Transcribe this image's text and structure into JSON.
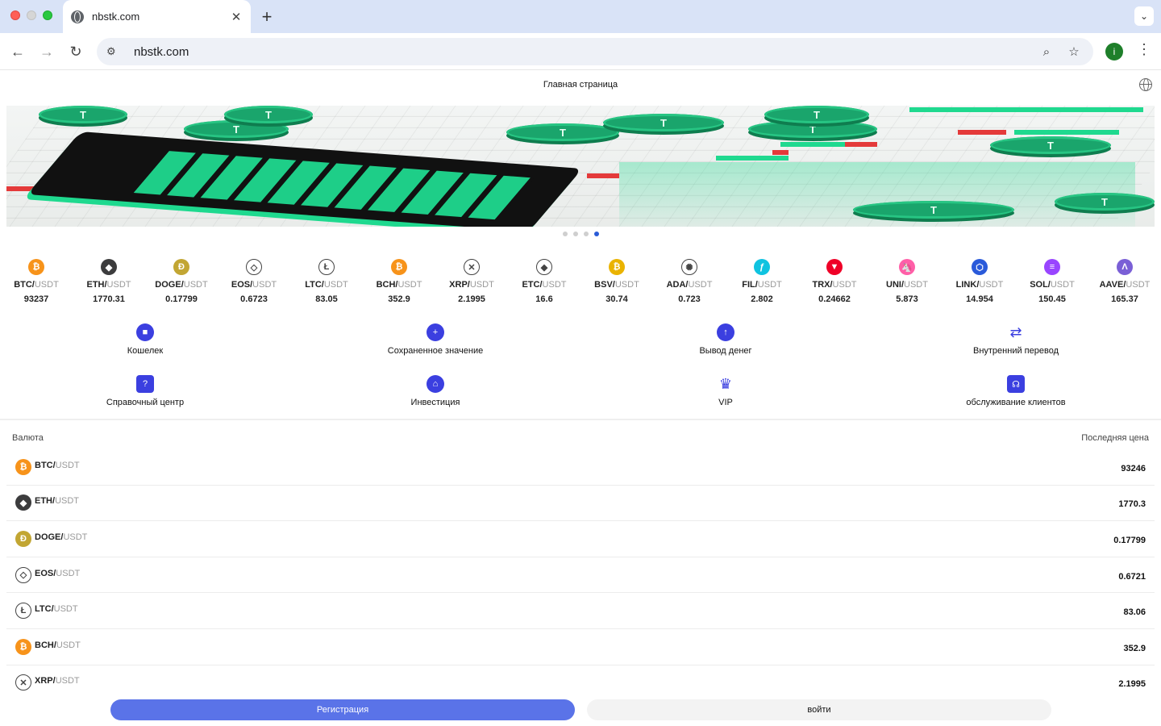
{
  "browser": {
    "tab_title": "nbstk.com",
    "tab_close": "✕",
    "new_tab": "+",
    "tab_menu": "⌄",
    "url": "nbstk.com",
    "profile_initial": "i"
  },
  "header": {
    "title": "Главная страница"
  },
  "carousel": {
    "slides": 4,
    "active_slide": 4
  },
  "ticker": [
    {
      "base": "BTC/",
      "quote": "USDT",
      "price": "93237",
      "icon": "bitcoin-icon",
      "color": "#f7931a",
      "glyph": "₿"
    },
    {
      "base": "ETH/",
      "quote": "USDT",
      "price": "1770.31",
      "icon": "ethereum-icon",
      "color": "#3c3c3d",
      "glyph": "◆"
    },
    {
      "base": "DOGE/",
      "quote": "USDT",
      "price": "0.17799",
      "icon": "dogecoin-icon",
      "color": "#c2a633",
      "glyph": "Ð"
    },
    {
      "base": "EOS/",
      "quote": "USDT",
      "price": "0.6723",
      "icon": "eos-icon",
      "color": "#ffffff",
      "glyph": "◇"
    },
    {
      "base": "LTC/",
      "quote": "USDT",
      "price": "83.05",
      "icon": "litecoin-icon",
      "color": "#ffffff",
      "glyph": "Ł"
    },
    {
      "base": "BCH/",
      "quote": "USDT",
      "price": "352.9",
      "icon": "bitcoin-cash-icon",
      "color": "#f7931a",
      "glyph": "₿"
    },
    {
      "base": "XRP/",
      "quote": "USDT",
      "price": "2.1995",
      "icon": "xrp-icon",
      "color": "#ffffff",
      "glyph": "✕"
    },
    {
      "base": "ETC/",
      "quote": "USDT",
      "price": "16.6",
      "icon": "ethereum-classic-icon",
      "color": "#ffffff",
      "glyph": "◆"
    },
    {
      "base": "BSV/",
      "quote": "USDT",
      "price": "30.74",
      "icon": "bitcoin-sv-icon",
      "color": "#eab300",
      "glyph": "₿"
    },
    {
      "base": "ADA/",
      "quote": "USDT",
      "price": "0.723",
      "icon": "cardano-icon",
      "color": "#ffffff",
      "glyph": "✺"
    },
    {
      "base": "FIL/",
      "quote": "USDT",
      "price": "2.802",
      "icon": "filecoin-icon",
      "color": "#0fc3e0",
      "glyph": "ƒ"
    },
    {
      "base": "TRX/",
      "quote": "USDT",
      "price": "0.24662",
      "icon": "tron-icon",
      "color": "#ef0027",
      "glyph": "▼"
    },
    {
      "base": "UNI/",
      "quote": "USDT",
      "price": "5.873",
      "icon": "uniswap-icon",
      "color": "#ff5fa8",
      "glyph": "🦄"
    },
    {
      "base": "LINK/",
      "quote": "USDT",
      "price": "14.954",
      "icon": "chainlink-icon",
      "color": "#2a5ada",
      "glyph": "⬡"
    },
    {
      "base": "SOL/",
      "quote": "USDT",
      "price": "150.45",
      "icon": "solana-icon",
      "color": "#9945ff",
      "glyph": "≡"
    },
    {
      "base": "AAVE/",
      "quote": "USDT",
      "price": "165.37",
      "icon": "aave-icon",
      "color": "#7a5fd6",
      "glyph": "Λ"
    }
  ],
  "quick_menu": [
    {
      "label": "Кошелек",
      "icon": "wallet-icon",
      "glyph": "■",
      "shape": "circle"
    },
    {
      "label": "Сохраненное значение",
      "icon": "deposit-plus-icon",
      "glyph": "+",
      "shape": "circle"
    },
    {
      "label": "Вывод денег",
      "icon": "withdraw-arrow-icon",
      "glyph": "↑",
      "shape": "circle"
    },
    {
      "label": "Внутренний перевод",
      "icon": "transfer-arrows-icon",
      "glyph": "⇄",
      "shape": "plain"
    },
    {
      "label": "Справочный центр",
      "icon": "help-document-icon",
      "glyph": "?",
      "shape": "square"
    },
    {
      "label": "Инвестиция",
      "icon": "investment-bank-icon",
      "glyph": "⌂",
      "shape": "circle"
    },
    {
      "label": "VIP",
      "icon": "vip-crown-icon",
      "glyph": "♛",
      "shape": "plain"
    },
    {
      "label": "обслуживание клиентов",
      "icon": "customer-service-headset-icon",
      "glyph": "☊",
      "shape": "square"
    }
  ],
  "market": {
    "col_currency": "Валюта",
    "col_last_price": "Последняя цена",
    "rows": [
      {
        "base": "BTC/",
        "quote": "USDT",
        "price": "93246",
        "icon": "bitcoin-icon",
        "color": "#f7931a",
        "glyph": "₿"
      },
      {
        "base": "ETH/",
        "quote": "USDT",
        "price": "1770.3",
        "icon": "ethereum-icon",
        "color": "#3c3c3d",
        "glyph": "◆"
      },
      {
        "base": "DOGE/",
        "quote": "USDT",
        "price": "0.17799",
        "icon": "dogecoin-icon",
        "color": "#c2a633",
        "glyph": "Ð"
      },
      {
        "base": "EOS/",
        "quote": "USDT",
        "price": "0.6721",
        "icon": "eos-icon",
        "color": "#ffffff",
        "glyph": "◇"
      },
      {
        "base": "LTC/",
        "quote": "USDT",
        "price": "83.06",
        "icon": "litecoin-icon",
        "color": "#ffffff",
        "glyph": "Ł"
      },
      {
        "base": "BCH/",
        "quote": "USDT",
        "price": "352.9",
        "icon": "bitcoin-cash-icon",
        "color": "#f7931a",
        "glyph": "₿"
      },
      {
        "base": "XRP/",
        "quote": "USDT",
        "price": "2.1995",
        "icon": "xrp-icon",
        "color": "#ffffff",
        "glyph": "✕"
      }
    ]
  },
  "auth": {
    "register_label": "Регистрация",
    "login_label": "войти"
  }
}
